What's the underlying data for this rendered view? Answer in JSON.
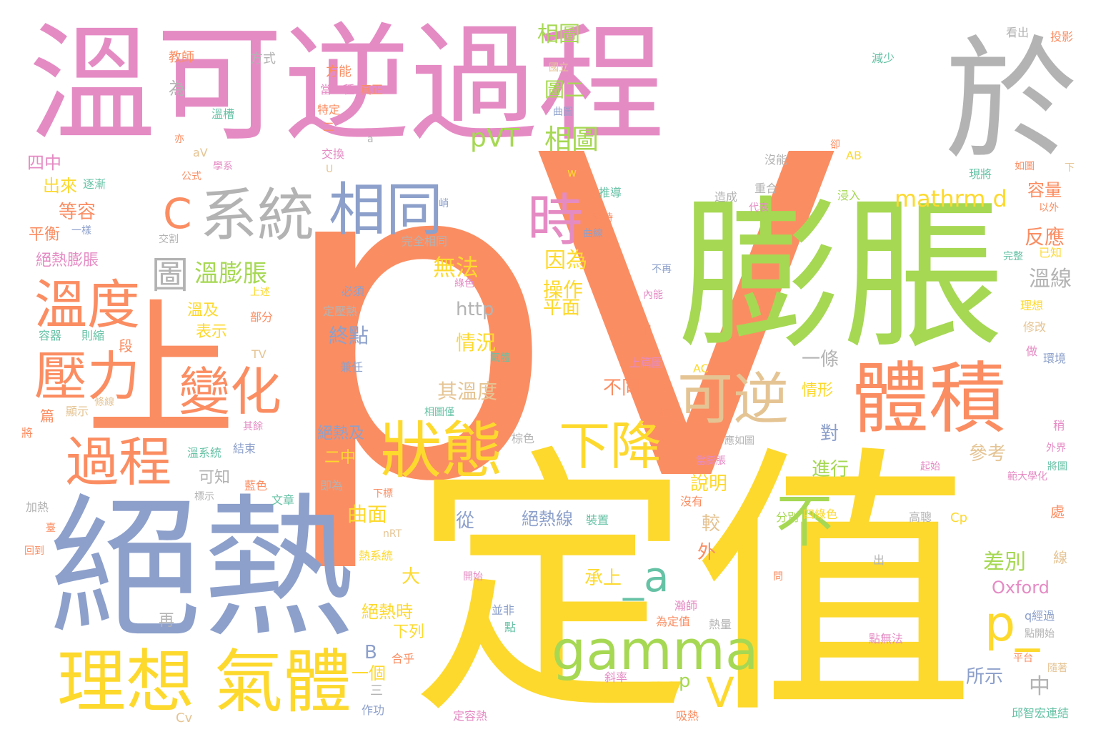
{
  "palette": {
    "pink": "#E58BC4",
    "orange": "#FB8D62",
    "green": "#A6D853",
    "yellow": "#FDD92E",
    "blue": "#8DA0CB",
    "teal": "#66C2A5",
    "gray": "#B3B3B3",
    "tan": "#E5C494"
  },
  "words": {
    "w001": "溫可逆過程",
    "w002": "於",
    "w003": "pV",
    "w004": "膨脹",
    "w005": "上",
    "w006": "定值",
    "w007": "絕熱",
    "w008": "系統",
    "w009": "相同",
    "w010": "C",
    "w011": "時",
    "w012": "溫度",
    "w013": "壓力",
    "w014": "圖",
    "w015": "溫膨脹",
    "w016": "變化",
    "w017": "過程",
    "w018": "可逆",
    "w019": "體積",
    "w020": "狀態",
    "w021": "下降",
    "w022": "不",
    "w023": "理想",
    "w024": "氣體",
    "w025": "gamma",
    "w026": "_a",
    "w027": "p_",
    "w028": "V",
    "w029": "mathrm d",
    "w030": "pVT",
    "w031": "相圖",
    "w032": "相圖",
    "w033": "圖二",
    "w034": "因為",
    "w035": "操作",
    "w036": "平面",
    "w037": "無法",
    "w038": "http",
    "w039": "終點",
    "w040": "情況",
    "w041": "其溫度",
    "w042": "不同",
    "w043": "一條",
    "w044": "情形",
    "w045": "曲面",
    "w046": "從",
    "w047": "絕熱線",
    "w048": "承上",
    "w049": "絕熱時",
    "w050": "下列",
    "w051": "大",
    "w052": "一個",
    "w053": "B",
    "w054": "p",
    "w055": "中",
    "w056": "所示",
    "w057": "差別",
    "w058": "Oxford",
    "w059": "參考",
    "w060": "進行",
    "w061": "說明",
    "w062": "較",
    "w063": "外",
    "w064": "對",
    "w065": "溫線",
    "w066": "反應",
    "w067": "容量",
    "w068": "四中",
    "w069": "出來",
    "w070": "等容",
    "w071": "平衡",
    "w072": "絕熱膨脹",
    "w073": "溫及",
    "w074": "表示",
    "w075": "絕熱及",
    "w076": "二中",
    "w077": "可知",
    "w078": "方式",
    "w079": "教師",
    "w080": "為",
    "w081": "方能",
    "w082": "當二種",
    "w083": "真正",
    "w084": "特定",
    "w085": "交換",
    "w086": "溫槽",
    "w087": "公式",
    "w088": "學系",
    "w089": "逐漸",
    "w090": "一樣",
    "w091": "交割",
    "w092": "完全相同",
    "w093": "必須",
    "w094": "定壓熱",
    "w095": "兼任",
    "w096": "則縮",
    "w097": "容器",
    "w098": "段",
    "w099": "篇",
    "w100": "顯示",
    "w101": "條線",
    "w102": "將",
    "w103": "其餘",
    "w104": "溫系統",
    "w105": "結束",
    "w106": "標示",
    "w107": "藍色",
    "w108": "即為",
    "w109": "加熱",
    "w110": "文章",
    "w111": "下標",
    "w112": "臺",
    "w113": "回到",
    "w114": "nRT",
    "w115": "熱系統",
    "w116": "開始",
    "w117": "並非",
    "w118": "點",
    "w119": "再",
    "w120": "三",
    "w121": "作功",
    "w122": "合乎",
    "w123": "定容熱",
    "w124": "斜率",
    "w125": "吸熱",
    "w126": "Cv",
    "w127": "為定值",
    "w128": "熱量",
    "w129": "點無法",
    "w130": "平台",
    "w131": "隨著",
    "w132": "邱智宏連結",
    "w133": "q經過",
    "w134": "點開始",
    "w135": "線",
    "w136": "問",
    "w137": "出",
    "w138": "高聰",
    "w139": "Cp",
    "w140": "處",
    "w141": "分別",
    "w142": "四綠色",
    "w143": "裝置",
    "w144": "沒有",
    "w145": "當膨脹",
    "w146": "範大學化",
    "w147": "起始",
    "w148": "將圖",
    "w149": "外界",
    "w150": "稍",
    "w151": "徒",
    "w152": "AC",
    "w153": "上篇圖",
    "w154": "做",
    "w155": "環境",
    "w156": "修改",
    "w157": "理想",
    "w158": "已知",
    "w159": "完整",
    "w160": "內能",
    "w161": "不再",
    "w162": "曲線",
    "w163": "溫時",
    "w164": "代表",
    "w165": "推導",
    "w166": "造成",
    "w167": "重合",
    "w168": "浸入",
    "w169": "現將",
    "w170": "沒能",
    "w171": "卻",
    "w172": "AB",
    "w173": "如圖",
    "w174": "下",
    "w175": "以外",
    "w176": "看出",
    "w177": "投影",
    "w178": "減少",
    "w179": "國立",
    "w180": "曲圖",
    "w181": "亦",
    "w182": "aV",
    "w183": "U",
    "w184": "a",
    "w185": "w",
    "w186": "二",
    "w187": "則",
    "w188": "TV",
    "w189": "部分",
    "w190": "上述",
    "w191": "綠色",
    "w192": "氣體",
    "w193": "相圖僅",
    "w194": "棕色",
    "w195": "應如圖",
    "w196": "峭",
    "w197": "瀚師"
  }
}
